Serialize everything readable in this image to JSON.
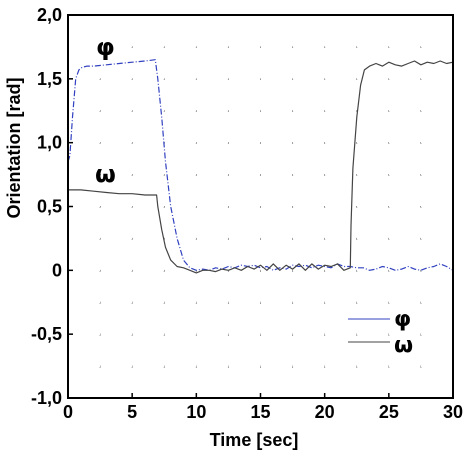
{
  "chart_data": {
    "type": "line",
    "title": "",
    "xlabel": "Time [sec]",
    "ylabel": "Orientation [rad]",
    "xlim": [
      0,
      30
    ],
    "ylim": [
      -1.0,
      2.0
    ],
    "x_ticks": [
      0,
      5,
      10,
      15,
      20,
      25,
      30
    ],
    "x_tick_labels": [
      "0",
      "5",
      "10",
      "15",
      "20",
      "25",
      "30"
    ],
    "y_ticks": [
      -1.0,
      -0.5,
      0,
      0.5,
      1.0,
      1.5,
      2.0
    ],
    "y_tick_labels": [
      "-1,0",
      "-0,5",
      "0",
      "0,5",
      "1,0",
      "1,5",
      "2,0"
    ],
    "grid": "dotted",
    "legend_position": "bottom-right",
    "annotations": [
      "φ",
      "ω"
    ],
    "series": [
      {
        "name": "φ",
        "color": "#3040c0",
        "dash": "dashdot",
        "x": [
          0,
          0.15,
          0.35,
          0.6,
          0.85,
          1.1,
          1.5,
          2,
          3,
          4,
          5,
          6,
          6.8,
          7.0,
          7.3,
          7.6,
          8.0,
          8.5,
          9.0,
          9.5,
          10.0,
          10.5,
          11,
          11.5,
          12,
          12.5,
          13,
          13.5,
          14,
          14.5,
          15,
          15.5,
          16,
          16.5,
          17,
          17.5,
          18,
          18.5,
          19,
          19.5,
          20,
          20.5,
          21,
          21.5,
          22,
          22.5,
          23,
          23.5,
          24,
          24.5,
          25,
          25.5,
          26,
          26.5,
          27,
          27.5,
          28,
          28.5,
          29,
          29.5,
          30
        ],
        "y": [
          0.85,
          0.9,
          1.2,
          1.5,
          1.57,
          1.59,
          1.6,
          1.6,
          1.61,
          1.62,
          1.63,
          1.64,
          1.65,
          1.5,
          1.2,
          0.85,
          0.5,
          0.25,
          0.08,
          0.02,
          0.0,
          0.01,
          0.0,
          0.02,
          0.01,
          0.03,
          0.02,
          0.04,
          0.03,
          0.04,
          0.02,
          0.03,
          0.0,
          0.02,
          0.01,
          0.04,
          0.03,
          0.04,
          0.02,
          0.04,
          0.03,
          0.02,
          0.05,
          0.03,
          0.03,
          0.02,
          0.02,
          0.0,
          0.01,
          0.03,
          0.02,
          0.0,
          0.01,
          0.03,
          0.01,
          0.0,
          0.02,
          0.03,
          0.05,
          0.03,
          0.0
        ]
      },
      {
        "name": "ω",
        "color": "#444444",
        "dash": "solid",
        "x": [
          0,
          1,
          2,
          3,
          4,
          5,
          6,
          6.9,
          7.0,
          7.3,
          7.6,
          8.0,
          8.5,
          9.0,
          9.5,
          10.0,
          10.5,
          11,
          11.5,
          12,
          12.5,
          13,
          13.5,
          14,
          14.5,
          15,
          15.5,
          16,
          16.5,
          17,
          17.5,
          18,
          18.5,
          19,
          19.5,
          20,
          20.5,
          21,
          21.5,
          22.0,
          22.05,
          22.2,
          22.5,
          22.8,
          23.1,
          23.5,
          24,
          24.5,
          25,
          25.5,
          26,
          26.5,
          27,
          27.5,
          28,
          28.5,
          29,
          29.5,
          30
        ],
        "y": [
          0.63,
          0.63,
          0.62,
          0.61,
          0.6,
          0.6,
          0.59,
          0.59,
          0.5,
          0.32,
          0.18,
          0.08,
          0.03,
          0.02,
          0.0,
          -0.02,
          0.0,
          0.0,
          -0.01,
          0.01,
          0.0,
          0.02,
          0.0,
          0.03,
          0.01,
          0.04,
          0.0,
          0.05,
          0.0,
          0.04,
          0.01,
          0.05,
          0.0,
          0.05,
          0.01,
          0.04,
          0.03,
          0.05,
          0.0,
          0.02,
          0.35,
          0.8,
          1.2,
          1.45,
          1.57,
          1.6,
          1.62,
          1.6,
          1.63,
          1.61,
          1.6,
          1.62,
          1.64,
          1.61,
          1.63,
          1.62,
          1.64,
          1.62,
          1.63
        ]
      }
    ]
  }
}
